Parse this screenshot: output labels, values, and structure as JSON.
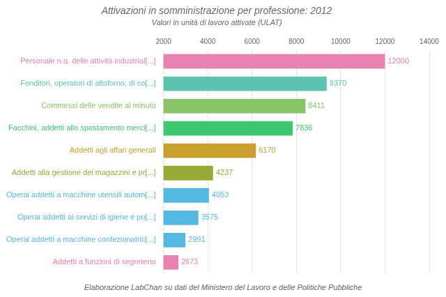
{
  "chart_data": {
    "type": "bar",
    "orientation": "horizontal",
    "title": "Attivazioni in somministrazione per professione: 2012",
    "subtitle": "Valori in unità di lavoro attivate (ULAT)",
    "footer": "Elaborazione LabChan su dati del Ministero del Lavoro e delle Politiche Pubbliche",
    "categories": [
      "Personale n.q. delle attività industrial[...]",
      "Fonditori, operatori di altoforno, di co[...]",
      "Commessi delle vendite al minuto",
      "Facchini, addetti allo spostamento merci[...]",
      "Addetti agli affari generali",
      "Addetti alla gestione dei magazzini e pr[...]",
      "Operai addetti a macchine utensili autom[...]",
      "Operai addetti ai servizi di igiene e pu[...]",
      "Operai addetti a macchine confezionatric[...]",
      "Addetti a funzioni di segreteria"
    ],
    "values": [
      12000,
      9370,
      8411,
      7836,
      6170,
      4237,
      4053,
      3575,
      2991,
      2673
    ],
    "colors": [
      "#e882b0",
      "#5cc4b0",
      "#88c46a",
      "#3dc870",
      "#c9a030",
      "#96aa38",
      "#55b8e0",
      "#55b8e0",
      "#55b8e0",
      "#e882b0"
    ],
    "xlim": [
      2000,
      14000
    ],
    "xticks": [
      2000,
      4000,
      6000,
      8000,
      10000,
      12000,
      14000
    ],
    "grid": true,
    "data_labels": true
  }
}
